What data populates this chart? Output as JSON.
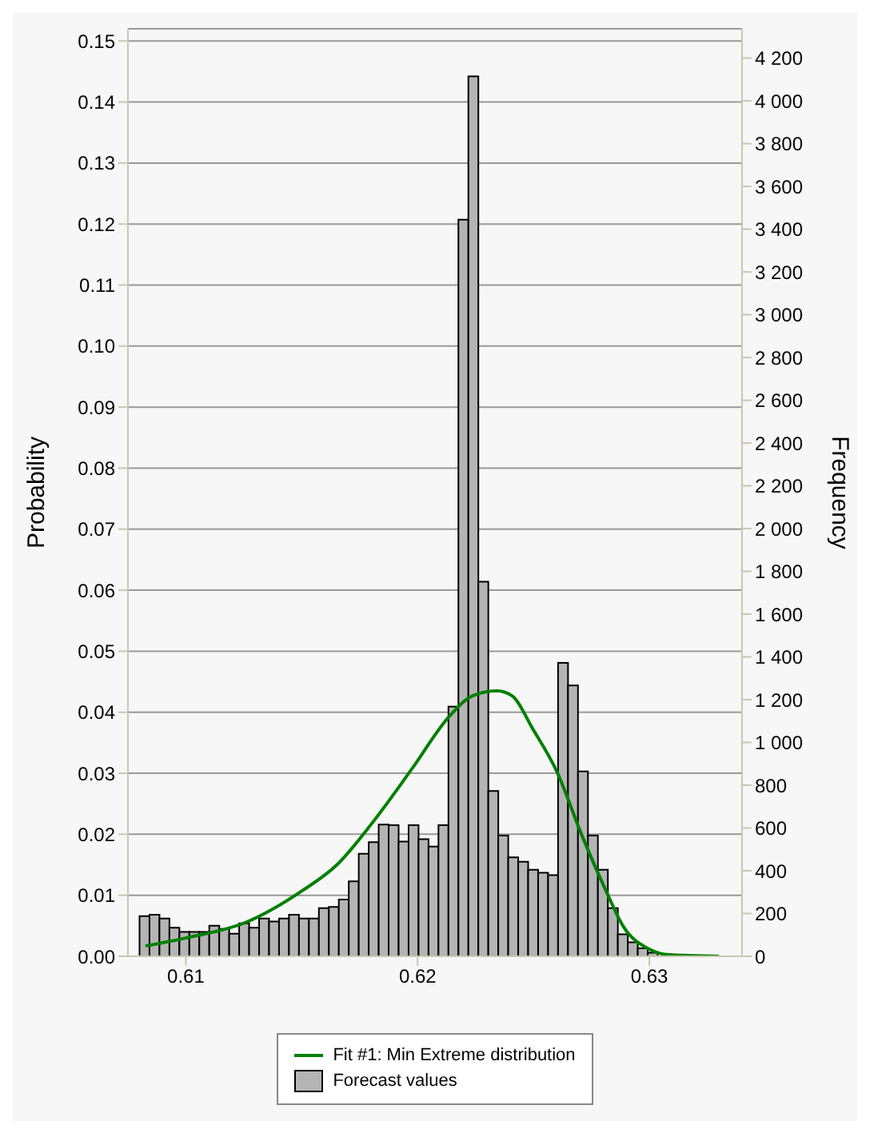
{
  "chart_data": {
    "type": "histogram",
    "xlim": [
      0.6075,
      0.634
    ],
    "xticks": [
      0.61,
      0.62,
      0.63
    ],
    "ylabel": "Probability",
    "y2label": "Frequency",
    "ylim": [
      0,
      0.152
    ],
    "yticks": [
      {
        "value": 0,
        "label": "0.00"
      },
      0.01,
      0.02,
      0.03,
      0.04,
      0.05,
      0.06,
      0.07,
      0.08,
      0.09,
      {
        "value": 0.1,
        "label": "0.10"
      },
      0.11,
      0.12,
      0.13,
      0.14,
      0.15
    ],
    "y2lim": [
      0,
      4337
    ],
    "y2ticks": [
      0,
      200,
      400,
      600,
      800,
      {
        "value": 1000,
        "label": "1 000"
      },
      {
        "value": 1200,
        "label": "1 200"
      },
      {
        "value": 1400,
        "label": "1 400"
      },
      {
        "value": 1600,
        "label": "1 600"
      },
      {
        "value": 1800,
        "label": "1 800"
      },
      {
        "value": 2000,
        "label": "2 000"
      },
      {
        "value": 2200,
        "label": "2 200"
      },
      {
        "value": 2400,
        "label": "2 400"
      },
      {
        "value": 2600,
        "label": "2 600"
      },
      {
        "value": 2800,
        "label": "2 800"
      },
      {
        "value": 3000,
        "label": "3 000"
      },
      {
        "value": 3200,
        "label": "3 200"
      },
      {
        "value": 3400,
        "label": "3 400"
      },
      {
        "value": 3600,
        "label": "3 600"
      },
      {
        "value": 3800,
        "label": "3 800"
      },
      {
        "value": 4000,
        "label": "4 000"
      },
      {
        "value": 4200,
        "label": "4 200"
      }
    ],
    "grid": "y",
    "legend": "bottom",
    "bins": [
      0.608,
      0.60843,
      0.60886,
      0.60929,
      0.60972,
      0.61015,
      0.61058,
      0.61101,
      0.61144,
      0.61187,
      0.6123,
      0.61273,
      0.61316,
      0.61359,
      0.61402,
      0.61445,
      0.61488,
      0.61531,
      0.61574,
      0.61617,
      0.6166,
      0.61703,
      0.61746,
      0.61789,
      0.61832,
      0.61875,
      0.61918,
      0.61961,
      0.62004,
      0.62047,
      0.6209,
      0.62133,
      0.62176,
      0.62219,
      0.62262,
      0.62305,
      0.62348,
      0.62391,
      0.62434,
      0.62477,
      0.6252,
      0.62563,
      0.62606,
      0.62649,
      0.62692,
      0.62735,
      0.62778,
      0.62821,
      0.62864,
      0.62907,
      0.6295,
      0.62993,
      0.63036
    ],
    "series": [
      {
        "name": "Fit #1: Min Extreme distribution",
        "type": "line",
        "color": "#008000",
        "x": [
          0.60826,
          0.61,
          0.61261,
          0.615,
          0.61652,
          0.61803,
          0.61977,
          0.62134,
          0.62238,
          0.62342,
          0.62407,
          0.62498,
          0.62603,
          0.62707,
          0.62811,
          0.62889,
          0.62993,
          0.63072,
          0.633
        ],
        "values": [
          0.0017,
          0.003,
          0.0056,
          0.0107,
          0.015,
          0.0218,
          0.0308,
          0.0392,
          0.0427,
          0.0435,
          0.0427,
          0.0372,
          0.0301,
          0.02,
          0.0109,
          0.0048,
          0.0013,
          0.0003,
          0
        ]
      },
      {
        "name": "Forecast values",
        "color": "#b4b4b4",
        "values": [
          0.0066,
          0.0068,
          0.0062,
          0.0047,
          0.004,
          0.004,
          0.004,
          0.005,
          0.0045,
          0.0037,
          0.0054,
          0.0047,
          0.0062,
          0.0057,
          0.0062,
          0.0068,
          0.0062,
          0.0062,
          0.0079,
          0.0081,
          0.0093,
          0.0123,
          0.0168,
          0.0187,
          0.0216,
          0.0215,
          0.0188,
          0.0215,
          0.0192,
          0.018,
          0.0215,
          0.0409,
          0.1207,
          0.1442,
          0.0614,
          0.0271,
          0.0198,
          0.0162,
          0.0155,
          0.0142,
          0.0137,
          0.0133,
          0.0481,
          0.0444,
          0.0303,
          0.0198,
          0.0142,
          0.0079,
          0.0036,
          0.0023,
          0.0013,
          0.0006
        ]
      }
    ]
  }
}
